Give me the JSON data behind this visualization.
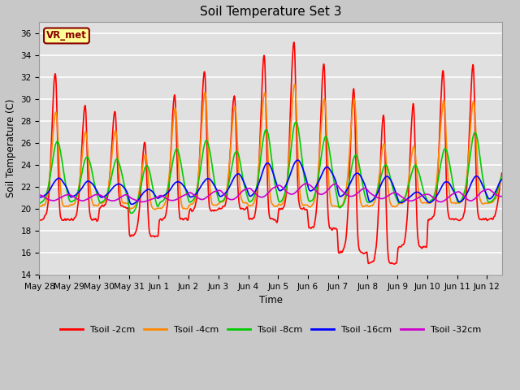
{
  "title": "Soil Temperature Set 3",
  "xlabel": "Time",
  "ylabel": "Soil Temperature (C)",
  "ylim": [
    14,
    37
  ],
  "yticks": [
    14,
    16,
    18,
    20,
    22,
    24,
    26,
    28,
    30,
    32,
    34,
    36
  ],
  "x_labels": [
    "May 28",
    "May 29",
    "May 30",
    "May 31",
    "Jun 1",
    "Jun 2",
    "Jun 3",
    "Jun 4",
    "Jun 5",
    "Jun 6",
    "Jun 7",
    "Jun 8",
    "Jun 9",
    "Jun 10",
    "Jun 11",
    "Jun 12"
  ],
  "colors": {
    "Tsoil -2cm": "#ff0000",
    "Tsoil -4cm": "#ff8800",
    "Tsoil -8cm": "#00cc00",
    "Tsoil -16cm": "#0000ff",
    "Tsoil -32cm": "#cc00cc"
  },
  "annotation_text": "VR_met",
  "annotation_color": "#8B0000",
  "annotation_bg": "#ffff99",
  "fig_bg": "#c8c8c8",
  "plot_bg": "#e0e0e0"
}
